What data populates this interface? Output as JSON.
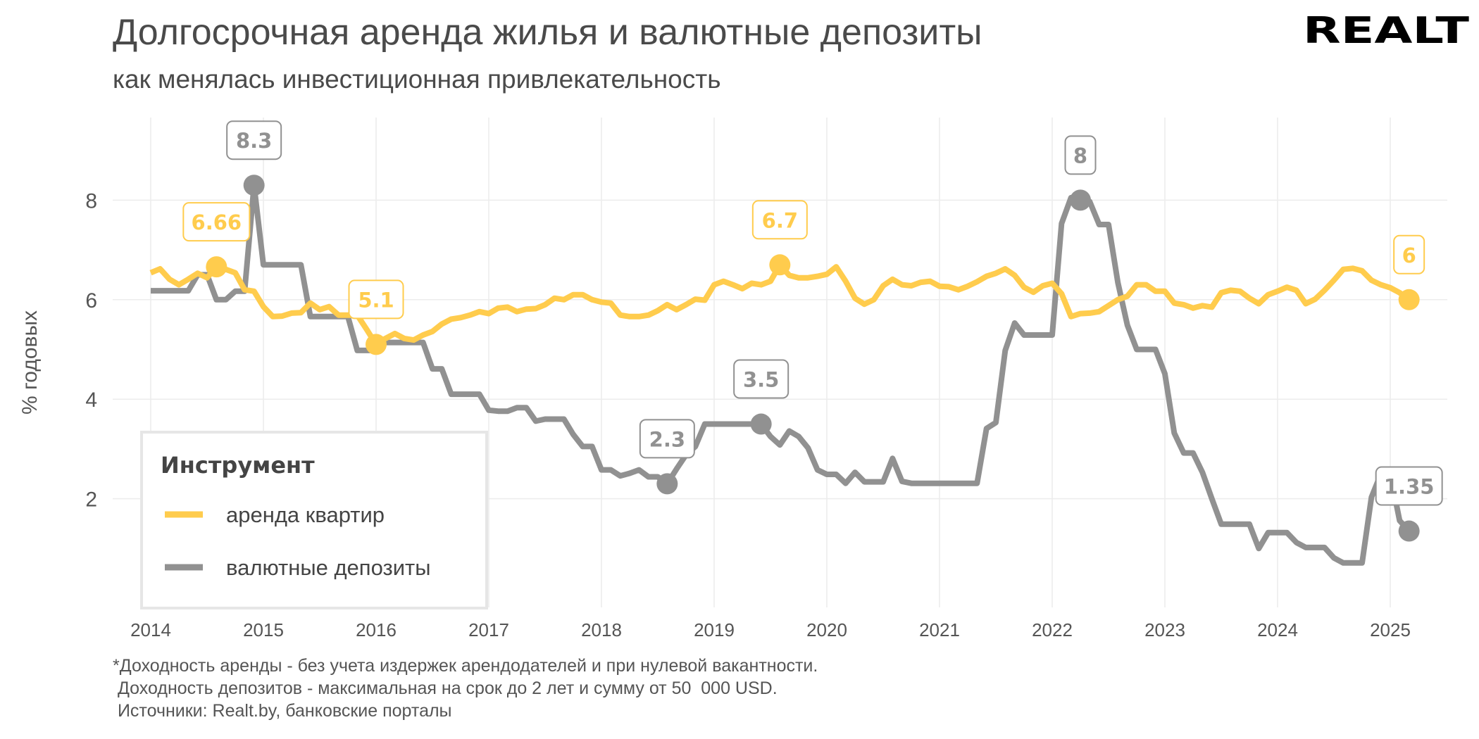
{
  "header": {
    "title": "Долгосрочная аренда жилья и валютные депозиты",
    "subtitle": "как менялась инвестиционная привлекательность",
    "logo_text": "REALT"
  },
  "footer": {
    "lines": [
      "*Доходность аренды - без учета издержек арендодателей и при нулевой вакантности.",
      " Доходность депозитов - максимальная на срок до 2 лет и сумму от 50  000 USD.",
      " Источники: Realt.by, банковские порталы"
    ]
  },
  "chart_data": {
    "type": "line",
    "title": "Долгосрочная аренда жилья и валютные депозиты",
    "subtitle": "как менялась инвестиционная привлекательность",
    "xlabel": "",
    "ylabel": "% годовых",
    "x_ticks": [
      "2014",
      "2015",
      "2016",
      "2017",
      "2018",
      "2019",
      "2020",
      "2021",
      "2022",
      "2023",
      "2024",
      "2025"
    ],
    "y_ticks": [
      2,
      4,
      6,
      8
    ],
    "xlim": [
      "2013-10",
      "2025-08"
    ],
    "ylim": [
      -0.2,
      9.6
    ],
    "grid": true,
    "start": "2014-01",
    "frequency": "monthly",
    "legend": {
      "title": "Инструмент",
      "position": "bottom-left",
      "items": [
        "аренда квартир",
        "валютные депозиты"
      ]
    },
    "series": [
      {
        "name": "аренда квартир",
        "color": "#FFCC4D",
        "values": [
          6.54,
          6.62,
          6.41,
          6.3,
          6.41,
          6.53,
          6.44,
          6.66,
          6.61,
          6.54,
          6.2,
          6.17,
          5.86,
          5.66,
          5.67,
          5.73,
          5.74,
          5.93,
          5.8,
          5.86,
          5.69,
          5.69,
          5.69,
          5.4,
          5.1,
          5.22,
          5.32,
          5.22,
          5.19,
          5.29,
          5.36,
          5.51,
          5.61,
          5.64,
          5.69,
          5.76,
          5.72,
          5.83,
          5.85,
          5.76,
          5.81,
          5.82,
          5.9,
          6.03,
          6.0,
          6.1,
          6.1,
          6.0,
          5.95,
          5.93,
          5.69,
          5.66,
          5.66,
          5.69,
          5.78,
          5.9,
          5.8,
          5.9,
          6.01,
          5.99,
          6.3,
          6.37,
          6.3,
          6.22,
          6.33,
          6.3,
          6.37,
          6.7,
          6.49,
          6.44,
          6.44,
          6.47,
          6.51,
          6.66,
          6.37,
          6.03,
          5.91,
          6.0,
          6.28,
          6.41,
          6.3,
          6.28,
          6.35,
          6.37,
          6.27,
          6.26,
          6.2,
          6.27,
          6.36,
          6.47,
          6.53,
          6.62,
          6.49,
          6.25,
          6.15,
          6.28,
          6.33,
          6.12,
          5.66,
          5.72,
          5.73,
          5.76,
          5.88,
          6.0,
          6.07,
          6.3,
          6.3,
          6.17,
          6.17,
          5.93,
          5.9,
          5.83,
          5.88,
          5.85,
          6.14,
          6.19,
          6.17,
          6.03,
          5.92,
          6.1,
          6.17,
          6.25,
          6.19,
          5.92,
          6.01,
          6.19,
          6.39,
          6.61,
          6.63,
          6.58,
          6.39,
          6.3,
          6.24,
          6.14,
          6.0
        ]
      },
      {
        "name": "валютные депозиты",
        "color": "#919191",
        "values": [
          6.18,
          6.18,
          6.18,
          6.18,
          6.18,
          6.5,
          6.5,
          6.0,
          6.0,
          6.17,
          6.17,
          8.3,
          6.7,
          6.7,
          6.7,
          6.7,
          6.7,
          5.66,
          5.66,
          5.66,
          5.66,
          5.66,
          4.98,
          4.98,
          4.98,
          5.14,
          5.14,
          5.14,
          5.14,
          5.14,
          4.61,
          4.61,
          4.1,
          4.1,
          4.1,
          4.1,
          3.78,
          3.76,
          3.76,
          3.83,
          3.83,
          3.56,
          3.6,
          3.6,
          3.6,
          3.29,
          3.05,
          3.05,
          2.58,
          2.58,
          2.46,
          2.51,
          2.58,
          2.44,
          2.44,
          2.3,
          2.6,
          2.88,
          3.05,
          3.5,
          3.5,
          3.5,
          3.5,
          3.5,
          3.5,
          3.5,
          3.25,
          3.08,
          3.36,
          3.25,
          3.02,
          2.58,
          2.49,
          2.49,
          2.31,
          2.53,
          2.34,
          2.34,
          2.34,
          2.81,
          2.35,
          2.31,
          2.31,
          2.31,
          2.31,
          2.31,
          2.31,
          2.31,
          2.31,
          3.41,
          3.53,
          4.98,
          5.53,
          5.29,
          5.29,
          5.29,
          5.29,
          7.53,
          8.05,
          8.0,
          7.97,
          7.51,
          7.51,
          6.34,
          5.49,
          5.0,
          5.0,
          5.0,
          4.51,
          3.32,
          2.92,
          2.92,
          2.53,
          2.0,
          1.49,
          1.49,
          1.49,
          1.49,
          1.0,
          1.32,
          1.32,
          1.32,
          1.12,
          1.02,
          1.02,
          1.02,
          0.81,
          0.71,
          0.71,
          0.71,
          2.03,
          2.5,
          2.5,
          1.56,
          1.35
        ]
      }
    ],
    "annotations": [
      {
        "series": 0,
        "date": "2014-08",
        "value": 6.66,
        "text": "6.66"
      },
      {
        "series": 0,
        "date": "2016-01",
        "value": 5.1,
        "text": "5.1"
      },
      {
        "series": 0,
        "date": "2019-08",
        "value": 6.7,
        "text": "6.7"
      },
      {
        "series": 0,
        "date": "2025-03",
        "value": 6.0,
        "text": "6"
      },
      {
        "series": 1,
        "date": "2014-12",
        "value": 8.3,
        "text": "8.3"
      },
      {
        "series": 1,
        "date": "2018-08",
        "value": 2.3,
        "text": "2.3"
      },
      {
        "series": 1,
        "date": "2019-06",
        "value": 3.5,
        "text": "3.5"
      },
      {
        "series": 1,
        "date": "2022-04",
        "value": 8.0,
        "text": "8"
      },
      {
        "series": 1,
        "date": "2025-03",
        "value": 1.35,
        "text": "1.35"
      }
    ]
  }
}
